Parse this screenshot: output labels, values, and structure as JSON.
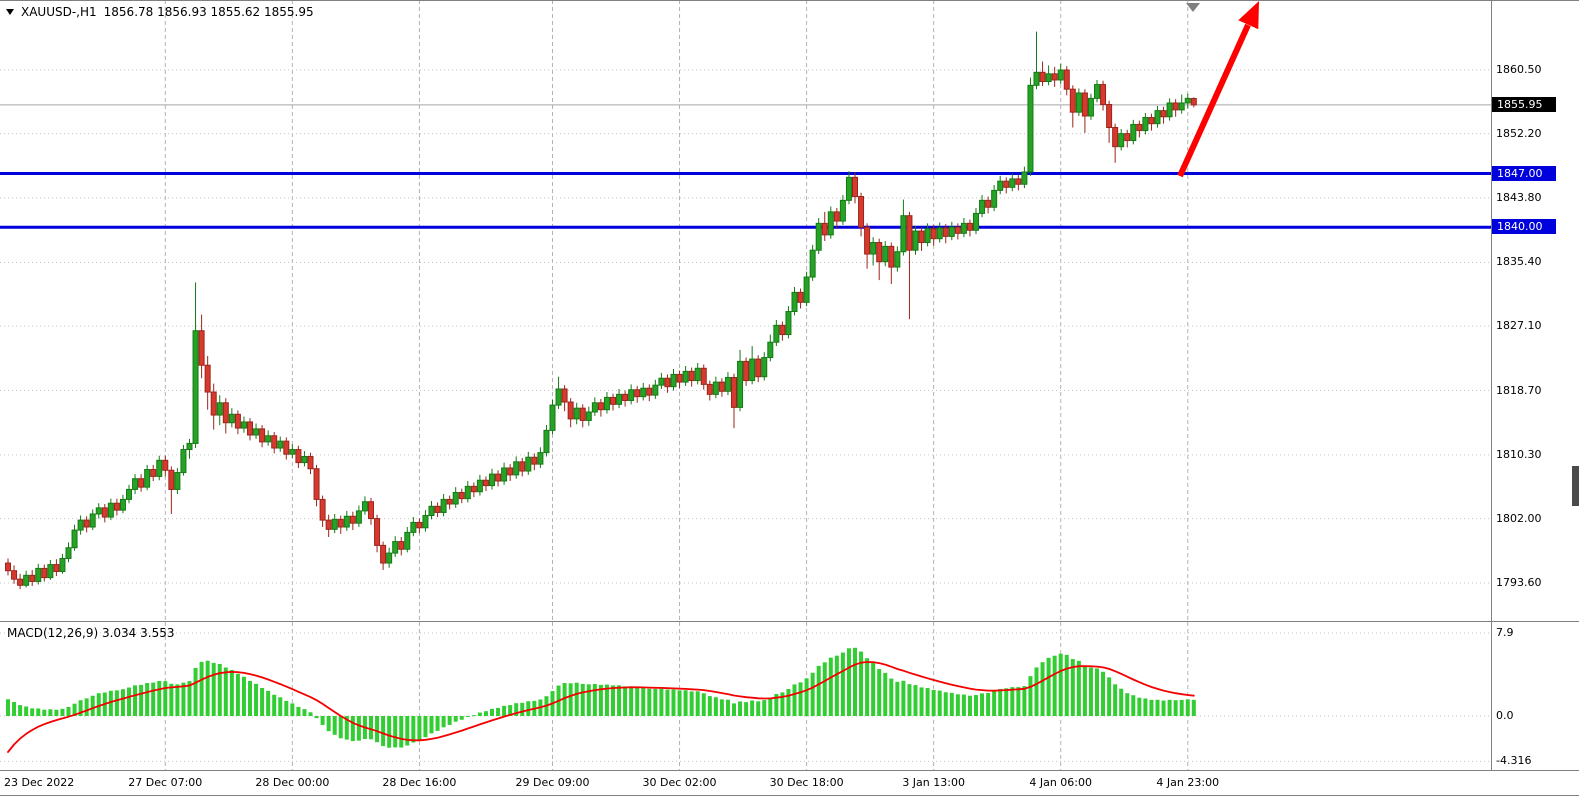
{
  "colors": {
    "bull_fill": "#26a326",
    "bull_stroke": "#147a14",
    "bear_fill": "#d63a2e",
    "bear_stroke": "#9c241b",
    "grid_v": "#b3b3b3",
    "grid_h": "#c6c6c6",
    "bid_line": "#a8a8a8",
    "hline": "#0000dd",
    "arrow": "#fe0000",
    "macd_hist": "#32cd32",
    "macd_signal": "#f40000",
    "badge_current_bg": "#000000",
    "badge_line_bg": "#0000dd"
  },
  "header": {
    "symbol_period": "XAUUSD-,H1",
    "ohlc_values": "1856.78 1856.93 1855.62 1855.95"
  },
  "price_axis": {
    "ticks": [
      {
        "text": "1860.50",
        "price": 1860.5
      },
      {
        "text": "1852.20",
        "price": 1852.2
      },
      {
        "text": "1843.80",
        "price": 1843.8
      },
      {
        "text": "1835.40",
        "price": 1835.4
      },
      {
        "text": "1827.10",
        "price": 1827.1
      },
      {
        "text": "1818.70",
        "price": 1818.7
      },
      {
        "text": "1810.30",
        "price": 1810.3
      },
      {
        "text": "1802.00",
        "price": 1802.0
      },
      {
        "text": "1793.60",
        "price": 1793.6
      }
    ],
    "current": {
      "text": "1855.95",
      "price": 1855.95
    },
    "lines": [
      {
        "text": "1847.00",
        "price": 1847.0
      },
      {
        "text": "1840.00",
        "price": 1840.0
      }
    ]
  },
  "macd": {
    "label": "MACD(12,26,9) 3.034 3.553",
    "main_value": 3.034,
    "signal_value": 3.553,
    "axis_ticks": [
      {
        "text": "7.9",
        "value": 7.9
      },
      {
        "text": "0.0",
        "value": 0.0
      },
      {
        "text": "-4.316",
        "value": -4.316
      }
    ]
  },
  "time_axis": {
    "ticks": [
      {
        "text": "23 Dec 2022",
        "index": 0
      },
      {
        "text": "27 Dec 07:00",
        "index": 26
      },
      {
        "text": "28 Dec 00:00",
        "index": 47
      },
      {
        "text": "28 Dec 16:00",
        "index": 68
      },
      {
        "text": "29 Dec 09:00",
        "index": 90
      },
      {
        "text": "30 Dec 02:00",
        "index": 111
      },
      {
        "text": "30 Dec 18:00",
        "index": 132
      },
      {
        "text": "3 Jan 13:00",
        "index": 153
      },
      {
        "text": "4 Jan 06:00",
        "index": 174
      },
      {
        "text": "4 Jan 23:00",
        "index": 195
      }
    ]
  },
  "chart_data": {
    "type": "candlestick",
    "symbol": "XAUUSD-",
    "timeframe": "H1",
    "current_ohlc": {
      "open": 1856.78,
      "high": 1856.93,
      "low": 1855.62,
      "close": 1855.95
    },
    "price_axis_ticks": [
      1860.5,
      1852.2,
      1843.8,
      1835.4,
      1827.1,
      1818.7,
      1810.3,
      1802.0,
      1793.6
    ],
    "visible_price_range": [
      1789,
      1869
    ],
    "horizontal_lines": [
      1847.0,
      1840.0
    ],
    "bid_price": 1855.95,
    "grid": "dashed-vertical dotted-horizontal",
    "annotations": [
      {
        "type": "trend-arrow",
        "direction": "up-right",
        "color": "#fe0000"
      },
      {
        "type": "chart-shift-marker",
        "color": "#808080"
      }
    ],
    "indicator": {
      "type": "MACD",
      "fast": 12,
      "slow": 26,
      "signal": 9,
      "current_main": 3.034,
      "current_signal": 3.553,
      "scale_levels": [
        7.9,
        0.0,
        -4.316
      ],
      "histogram_color": "#32cd32",
      "signal_color": "#f40000"
    },
    "candles": [
      [
        1796.2,
        1796.8,
        1794.6,
        1795.2
      ],
      [
        1795.2,
        1795.9,
        1793.5,
        1794.1
      ],
      [
        1794.1,
        1794.8,
        1792.8,
        1793.3
      ],
      [
        1793.3,
        1795.2,
        1793.0,
        1794.6
      ],
      [
        1794.6,
        1795.3,
        1793.2,
        1793.8
      ],
      [
        1793.8,
        1796.1,
        1793.4,
        1795.5
      ],
      [
        1795.5,
        1796.0,
        1793.8,
        1794.3
      ],
      [
        1794.3,
        1796.6,
        1794.0,
        1796.0
      ],
      [
        1796.0,
        1796.7,
        1794.5,
        1795.1
      ],
      [
        1795.1,
        1797.4,
        1794.8,
        1796.8
      ],
      [
        1796.8,
        1798.9,
        1796.3,
        1798.2
      ],
      [
        1798.2,
        1801.2,
        1797.8,
        1800.5
      ],
      [
        1800.5,
        1802.4,
        1799.9,
        1801.8
      ],
      [
        1801.8,
        1802.3,
        1800.2,
        1800.9
      ],
      [
        1800.9,
        1803.2,
        1800.5,
        1802.6
      ],
      [
        1802.6,
        1804.0,
        1802.0,
        1803.4
      ],
      [
        1803.4,
        1803.9,
        1801.5,
        1802.2
      ],
      [
        1802.2,
        1804.6,
        1801.8,
        1804.0
      ],
      [
        1804.0,
        1804.6,
        1802.4,
        1803.1
      ],
      [
        1803.1,
        1805.1,
        1802.7,
        1804.5
      ],
      [
        1804.5,
        1806.4,
        1804.0,
        1805.8
      ],
      [
        1805.8,
        1807.8,
        1805.2,
        1807.2
      ],
      [
        1807.2,
        1807.8,
        1805.5,
        1806.1
      ],
      [
        1806.1,
        1809.0,
        1805.7,
        1808.4
      ],
      [
        1808.4,
        1809.0,
        1806.9,
        1807.5
      ],
      [
        1807.5,
        1810.2,
        1807.0,
        1809.6
      ],
      [
        1809.6,
        1810.2,
        1807.5,
        1808.3
      ],
      [
        1808.3,
        1808.8,
        1802.6,
        1805.8
      ],
      [
        1805.8,
        1808.6,
        1805.2,
        1808.0
      ],
      [
        1808.0,
        1811.6,
        1807.6,
        1811.0
      ],
      [
        1811.0,
        1812.4,
        1809.8,
        1811.8
      ],
      [
        1811.8,
        1832.8,
        1811.2,
        1826.5
      ],
      [
        1826.5,
        1828.6,
        1820.3,
        1822.0
      ],
      [
        1822.0,
        1823.2,
        1816.2,
        1818.5
      ],
      [
        1818.5,
        1819.6,
        1813.6,
        1815.5
      ],
      [
        1815.5,
        1818.1,
        1814.2,
        1817.1
      ],
      [
        1817.1,
        1817.7,
        1813.1,
        1814.5
      ],
      [
        1814.5,
        1816.4,
        1813.9,
        1815.6
      ],
      [
        1815.6,
        1816.1,
        1813.0,
        1813.8
      ],
      [
        1813.8,
        1815.3,
        1813.2,
        1814.6
      ],
      [
        1814.6,
        1815.1,
        1812.2,
        1812.9
      ],
      [
        1812.9,
        1814.4,
        1812.4,
        1813.7
      ],
      [
        1813.7,
        1814.2,
        1811.3,
        1812.0
      ],
      [
        1812.0,
        1813.5,
        1811.5,
        1812.8
      ],
      [
        1812.8,
        1813.3,
        1810.5,
        1811.2
      ],
      [
        1811.2,
        1812.7,
        1810.7,
        1812.1
      ],
      [
        1812.1,
        1812.6,
        1809.7,
        1810.4
      ],
      [
        1810.4,
        1811.7,
        1809.9,
        1811.0
      ],
      [
        1811.0,
        1811.5,
        1808.6,
        1809.3
      ],
      [
        1809.3,
        1810.8,
        1808.8,
        1810.1
      ],
      [
        1810.1,
        1810.6,
        1807.8,
        1808.5
      ],
      [
        1808.5,
        1809.0,
        1803.6,
        1804.5
      ],
      [
        1804.5,
        1805.0,
        1800.9,
        1801.8
      ],
      [
        1801.8,
        1802.5,
        1799.6,
        1800.6
      ],
      [
        1800.6,
        1802.6,
        1800.1,
        1801.9
      ],
      [
        1801.9,
        1802.4,
        1800.0,
        1800.9
      ],
      [
        1800.9,
        1803.0,
        1800.4,
        1802.3
      ],
      [
        1802.3,
        1802.9,
        1800.5,
        1801.4
      ],
      [
        1801.4,
        1803.7,
        1800.9,
        1803.0
      ],
      [
        1803.0,
        1804.9,
        1802.5,
        1804.2
      ],
      [
        1804.2,
        1804.7,
        1801.2,
        1802.0
      ],
      [
        1802.0,
        1802.5,
        1797.6,
        1798.5
      ],
      [
        1798.5,
        1799.0,
        1795.3,
        1796.2
      ],
      [
        1796.2,
        1798.2,
        1795.6,
        1797.5
      ],
      [
        1797.5,
        1799.7,
        1797.0,
        1799.0
      ],
      [
        1799.0,
        1799.6,
        1797.2,
        1798.0
      ],
      [
        1798.0,
        1800.9,
        1797.6,
        1800.2
      ],
      [
        1800.2,
        1802.2,
        1799.7,
        1801.5
      ],
      [
        1801.5,
        1802.0,
        1800.1,
        1800.8
      ],
      [
        1800.8,
        1803.1,
        1800.3,
        1802.4
      ],
      [
        1802.4,
        1804.3,
        1801.9,
        1803.6
      ],
      [
        1803.6,
        1804.1,
        1802.2,
        1802.8
      ],
      [
        1802.8,
        1805.2,
        1802.3,
        1804.5
      ],
      [
        1804.5,
        1805.0,
        1803.2,
        1803.9
      ],
      [
        1803.9,
        1806.1,
        1803.4,
        1805.4
      ],
      [
        1805.4,
        1805.9,
        1804.0,
        1804.6
      ],
      [
        1804.6,
        1806.9,
        1804.1,
        1806.2
      ],
      [
        1806.2,
        1806.7,
        1804.8,
        1805.5
      ],
      [
        1805.5,
        1807.7,
        1805.0,
        1807.0
      ],
      [
        1807.0,
        1807.5,
        1805.6,
        1806.3
      ],
      [
        1806.3,
        1808.5,
        1805.8,
        1807.8
      ],
      [
        1807.8,
        1808.3,
        1806.2,
        1806.9
      ],
      [
        1806.9,
        1809.3,
        1806.4,
        1808.6
      ],
      [
        1808.6,
        1809.1,
        1806.9,
        1807.7
      ],
      [
        1807.7,
        1810.1,
        1807.2,
        1809.4
      ],
      [
        1809.4,
        1809.9,
        1807.5,
        1808.2
      ],
      [
        1808.2,
        1810.7,
        1807.7,
        1810.0
      ],
      [
        1810.0,
        1810.5,
        1808.3,
        1809.1
      ],
      [
        1809.1,
        1811.3,
        1808.6,
        1810.6
      ],
      [
        1810.6,
        1814.2,
        1810.1,
        1813.5
      ],
      [
        1813.5,
        1817.5,
        1813.0,
        1816.8
      ],
      [
        1816.8,
        1820.5,
        1816.3,
        1818.9
      ],
      [
        1818.9,
        1819.4,
        1816.0,
        1817.2
      ],
      [
        1817.2,
        1817.7,
        1813.9,
        1815.0
      ],
      [
        1815.0,
        1817.1,
        1814.3,
        1816.4
      ],
      [
        1816.4,
        1816.9,
        1813.9,
        1814.8
      ],
      [
        1814.8,
        1816.6,
        1814.1,
        1815.9
      ],
      [
        1815.9,
        1817.8,
        1815.4,
        1817.1
      ],
      [
        1817.1,
        1817.6,
        1815.3,
        1816.2
      ],
      [
        1816.2,
        1818.5,
        1815.7,
        1817.8
      ],
      [
        1817.8,
        1818.3,
        1816.1,
        1816.9
      ],
      [
        1816.9,
        1818.9,
        1816.4,
        1818.2
      ],
      [
        1818.2,
        1818.7,
        1816.6,
        1817.4
      ],
      [
        1817.4,
        1819.5,
        1816.9,
        1818.8
      ],
      [
        1818.8,
        1819.3,
        1817.1,
        1817.9
      ],
      [
        1817.9,
        1819.7,
        1817.4,
        1819.0
      ],
      [
        1819.0,
        1819.5,
        1817.3,
        1818.1
      ],
      [
        1818.1,
        1820.1,
        1817.6,
        1819.4
      ],
      [
        1819.4,
        1821.0,
        1818.9,
        1820.3
      ],
      [
        1820.3,
        1820.8,
        1818.4,
        1819.2
      ],
      [
        1819.2,
        1821.5,
        1818.7,
        1820.8
      ],
      [
        1820.8,
        1821.3,
        1819.0,
        1819.8
      ],
      [
        1819.8,
        1821.9,
        1819.3,
        1821.2
      ],
      [
        1821.2,
        1821.7,
        1819.2,
        1820.0
      ],
      [
        1820.0,
        1822.3,
        1819.5,
        1821.6
      ],
      [
        1821.6,
        1822.1,
        1818.8,
        1819.5
      ],
      [
        1819.5,
        1820.0,
        1817.4,
        1818.2
      ],
      [
        1818.2,
        1820.5,
        1817.7,
        1819.8
      ],
      [
        1819.8,
        1820.3,
        1817.9,
        1818.6
      ],
      [
        1818.6,
        1821.1,
        1818.1,
        1820.4
      ],
      [
        1820.4,
        1820.9,
        1813.8,
        1816.5
      ],
      [
        1816.5,
        1824.0,
        1816.0,
        1822.5
      ],
      [
        1822.5,
        1823.0,
        1819.3,
        1820.0
      ],
      [
        1820.0,
        1824.5,
        1819.5,
        1822.8
      ],
      [
        1822.8,
        1823.3,
        1819.8,
        1820.5
      ],
      [
        1820.5,
        1823.7,
        1820.0,
        1823.0
      ],
      [
        1823.0,
        1826.0,
        1822.5,
        1825.0
      ],
      [
        1825.0,
        1827.9,
        1824.5,
        1827.2
      ],
      [
        1827.2,
        1827.7,
        1825.2,
        1826.0
      ],
      [
        1826.0,
        1829.7,
        1825.5,
        1829.0
      ],
      [
        1829.0,
        1832.2,
        1828.5,
        1831.5
      ],
      [
        1831.5,
        1832.0,
        1829.4,
        1830.2
      ],
      [
        1830.2,
        1834.2,
        1829.7,
        1833.5
      ],
      [
        1833.5,
        1837.7,
        1833.0,
        1837.0
      ],
      [
        1837.0,
        1841.2,
        1836.5,
        1840.5
      ],
      [
        1840.5,
        1842.0,
        1838.2,
        1839.0
      ],
      [
        1839.0,
        1842.7,
        1838.5,
        1842.0
      ],
      [
        1842.0,
        1842.5,
        1839.9,
        1840.8
      ],
      [
        1840.8,
        1844.2,
        1840.3,
        1843.5
      ],
      [
        1843.5,
        1847.3,
        1843.0,
        1846.5
      ],
      [
        1846.5,
        1847.2,
        1843.1,
        1844.0
      ],
      [
        1844.0,
        1844.5,
        1838.8,
        1840.0
      ],
      [
        1840.0,
        1840.5,
        1834.6,
        1836.5
      ],
      [
        1836.5,
        1838.7,
        1835.0,
        1838.0
      ],
      [
        1838.0,
        1838.5,
        1833.1,
        1835.5
      ],
      [
        1835.5,
        1838.2,
        1834.9,
        1837.5
      ],
      [
        1837.5,
        1838.0,
        1832.6,
        1834.8
      ],
      [
        1834.8,
        1837.5,
        1834.2,
        1836.8
      ],
      [
        1836.8,
        1843.6,
        1836.3,
        1841.5
      ],
      [
        1841.5,
        1842.0,
        1828.0,
        1837.0
      ],
      [
        1837.0,
        1840.2,
        1836.4,
        1839.5
      ],
      [
        1839.5,
        1840.0,
        1836.9,
        1838.0
      ],
      [
        1838.0,
        1840.5,
        1837.5,
        1839.8
      ],
      [
        1839.8,
        1840.3,
        1837.6,
        1838.5
      ],
      [
        1838.5,
        1840.6,
        1838.0,
        1839.9
      ],
      [
        1839.9,
        1840.4,
        1837.9,
        1838.8
      ],
      [
        1838.8,
        1840.7,
        1838.3,
        1840.0
      ],
      [
        1840.0,
        1840.5,
        1838.4,
        1839.2
      ],
      [
        1839.2,
        1841.2,
        1838.7,
        1840.5
      ],
      [
        1840.5,
        1841.0,
        1838.8,
        1839.6
      ],
      [
        1839.6,
        1842.5,
        1839.1,
        1841.8
      ],
      [
        1841.8,
        1844.2,
        1841.3,
        1843.5
      ],
      [
        1843.5,
        1844.0,
        1841.8,
        1842.6
      ],
      [
        1842.6,
        1845.5,
        1842.1,
        1844.8
      ],
      [
        1844.8,
        1846.7,
        1844.3,
        1846.0
      ],
      [
        1846.0,
        1846.5,
        1844.4,
        1845.2
      ],
      [
        1845.2,
        1847.0,
        1844.7,
        1846.3
      ],
      [
        1846.3,
        1846.8,
        1844.8,
        1845.6
      ],
      [
        1845.6,
        1847.9,
        1845.1,
        1847.2
      ],
      [
        1847.2,
        1859.5,
        1846.7,
        1858.5
      ],
      [
        1858.5,
        1865.5,
        1858.0,
        1860.2
      ],
      [
        1860.2,
        1861.6,
        1858.4,
        1859.0
      ],
      [
        1859.0,
        1861.1,
        1858.5,
        1860.0
      ],
      [
        1860.0,
        1860.9,
        1858.3,
        1859.2
      ],
      [
        1859.2,
        1861.3,
        1858.7,
        1860.5
      ],
      [
        1860.5,
        1861.0,
        1857.2,
        1858.0
      ],
      [
        1858.0,
        1858.5,
        1853.0,
        1855.0
      ],
      [
        1855.0,
        1858.1,
        1854.5,
        1857.5
      ],
      [
        1857.5,
        1858.0,
        1852.3,
        1854.5
      ],
      [
        1854.5,
        1857.4,
        1854.0,
        1856.8
      ],
      [
        1856.8,
        1859.2,
        1856.3,
        1858.6
      ],
      [
        1858.6,
        1859.1,
        1855.2,
        1856.0
      ],
      [
        1856.0,
        1856.5,
        1851.0,
        1853.0
      ],
      [
        1853.0,
        1853.5,
        1848.4,
        1850.5
      ],
      [
        1850.5,
        1852.8,
        1850.0,
        1852.2
      ],
      [
        1852.2,
        1852.7,
        1850.4,
        1851.3
      ],
      [
        1851.3,
        1854.0,
        1850.8,
        1853.4
      ],
      [
        1853.4,
        1853.9,
        1851.7,
        1852.6
      ],
      [
        1852.6,
        1854.9,
        1852.1,
        1854.3
      ],
      [
        1854.3,
        1854.8,
        1852.6,
        1853.5
      ],
      [
        1853.5,
        1855.8,
        1853.0,
        1855.2
      ],
      [
        1855.2,
        1855.7,
        1853.5,
        1854.4
      ],
      [
        1854.4,
        1856.8,
        1853.9,
        1856.2
      ],
      [
        1856.2,
        1856.7,
        1854.4,
        1855.3
      ],
      [
        1855.3,
        1857.3,
        1854.8,
        1856.2
      ],
      [
        1856.2,
        1857.4,
        1855.5,
        1856.8
      ],
      [
        1856.78,
        1856.93,
        1855.62,
        1855.95
      ]
    ]
  }
}
